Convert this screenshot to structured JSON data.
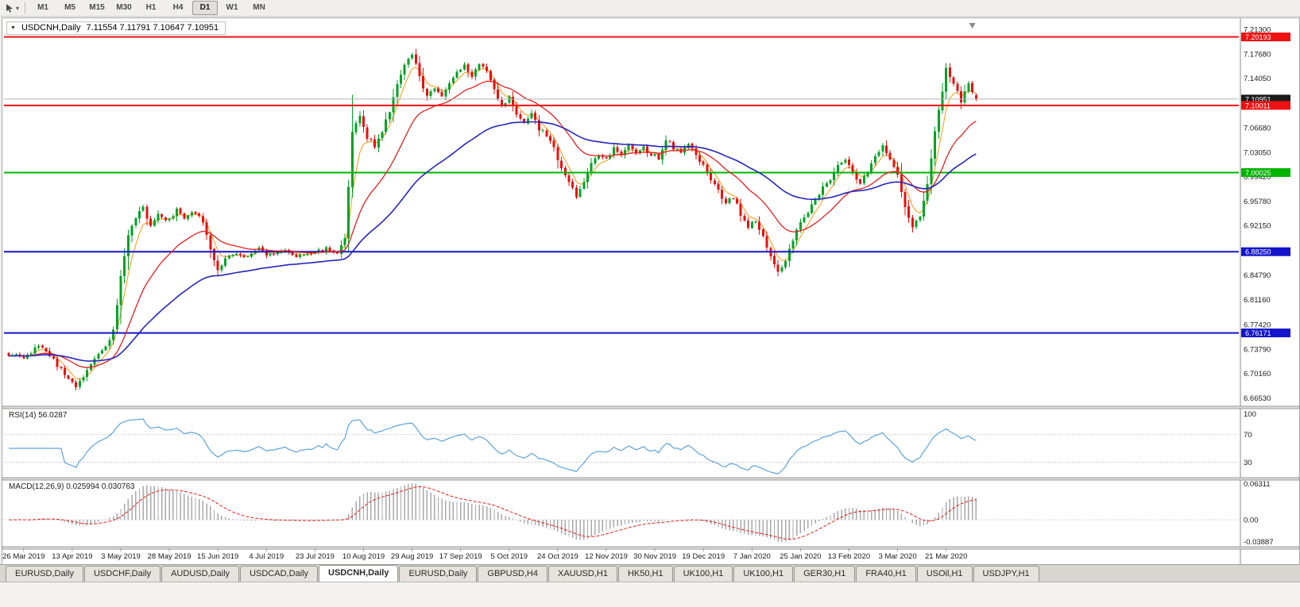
{
  "window": {
    "symbol_period": "USDCNH,Daily",
    "ohlc": "7.11554 7.11791 7.10647 7.10951"
  },
  "toolbar": {
    "timeframes": [
      "M1",
      "M5",
      "M15",
      "M30",
      "H1",
      "H4",
      "D1",
      "W1",
      "MN"
    ],
    "active_timeframe": "D1"
  },
  "chart_data": {
    "type": "candlestick",
    "symbol": "USDCNH",
    "period": "Daily",
    "current_bar": {
      "open": 7.11554,
      "high": 7.11791,
      "low": 7.10647,
      "close": 7.10951
    },
    "colors": {
      "up": "#00a327",
      "down": "#e81010",
      "ma_fast": "#f5a733",
      "ma_mid": "#e02020",
      "ma_slow": "#2626bd",
      "bid_line": "#b3b3b3",
      "bid_box": "#1a1a1a",
      "rsi": "#4f9bd9",
      "macd_hist": "#a8a8a8",
      "macd_signal": "#e02020"
    },
    "y_range": [
      6.655,
      7.225
    ],
    "y_ticks": [
      "7.21300",
      "7.17680",
      "7.14050",
      "7.06680",
      "7.03050",
      "6.99420",
      "6.95780",
      "6.92150",
      "6.84790",
      "6.81160",
      "6.77420",
      "6.73790",
      "6.70160",
      "6.66530"
    ],
    "horizontal_lines": [
      {
        "price": 7.20193,
        "label": "7.20193",
        "color": "#ee1111"
      },
      {
        "price": 7.10011,
        "label": "7.10011",
        "color": "#ee1111"
      },
      {
        "price": 7.00025,
        "label": "7.00025",
        "color": "#00b400"
      },
      {
        "price": 6.8825,
        "label": "6.88250",
        "color": "#1414cc"
      },
      {
        "price": 6.76171,
        "label": "6.76171",
        "color": "#1414cc"
      }
    ],
    "bid": {
      "price": 7.10951,
      "label": "7.10951"
    },
    "x_labels": [
      {
        "text": "26 Mar 2019",
        "i": 4
      },
      {
        "text": "13 Apr 2019",
        "i": 17
      },
      {
        "text": "3 May 2019",
        "i": 30
      },
      {
        "text": "28 May 2019",
        "i": 43
      },
      {
        "text": "15 Jun 2019",
        "i": 56
      },
      {
        "text": "4 Jul 2019",
        "i": 69
      },
      {
        "text": "23 Jul 2019",
        "i": 82
      },
      {
        "text": "10 Aug 2019",
        "i": 95
      },
      {
        "text": "29 Aug 2019",
        "i": 108
      },
      {
        "text": "17 Sep 2019",
        "i": 121
      },
      {
        "text": "5 Oct 2019",
        "i": 134
      },
      {
        "text": "24 Oct 2019",
        "i": 147
      },
      {
        "text": "12 Nov 2019",
        "i": 160
      },
      {
        "text": "30 Nov 2019",
        "i": 173
      },
      {
        "text": "19 Dec 2019",
        "i": 186
      },
      {
        "text": "7 Jan 2020",
        "i": 199
      },
      {
        "text": "25 Jan 2020",
        "i": 212
      },
      {
        "text": "13 Feb 2020",
        "i": 225
      },
      {
        "text": "3 Mar 2020",
        "i": 238
      },
      {
        "text": "21 Mar 2020",
        "i": 251
      }
    ],
    "candles": {
      "count": 260,
      "close_waypoints": [
        [
          0,
          6.73
        ],
        [
          4,
          6.726
        ],
        [
          8,
          6.742
        ],
        [
          12,
          6.722
        ],
        [
          16,
          6.692
        ],
        [
          18,
          6.681
        ],
        [
          22,
          6.716
        ],
        [
          26,
          6.742
        ],
        [
          28,
          6.764
        ],
        [
          30,
          6.845
        ],
        [
          32,
          6.906
        ],
        [
          34,
          6.934
        ],
        [
          36,
          6.947
        ],
        [
          38,
          6.921
        ],
        [
          40,
          6.938
        ],
        [
          43,
          6.929
        ],
        [
          45,
          6.947
        ],
        [
          47,
          6.935
        ],
        [
          50,
          6.941
        ],
        [
          52,
          6.928
        ],
        [
          54,
          6.884
        ],
        [
          56,
          6.856
        ],
        [
          58,
          6.871
        ],
        [
          61,
          6.882
        ],
        [
          64,
          6.874
        ],
        [
          67,
          6.886
        ],
        [
          70,
          6.877
        ],
        [
          74,
          6.884
        ],
        [
          78,
          6.875
        ],
        [
          82,
          6.881
        ],
        [
          85,
          6.887
        ],
        [
          88,
          6.878
        ],
        [
          90,
          6.901
        ],
        [
          91,
          6.976
        ],
        [
          92,
          7.058
        ],
        [
          94,
          7.082
        ],
        [
          96,
          7.052
        ],
        [
          98,
          7.041
        ],
        [
          100,
          7.062
        ],
        [
          102,
          7.092
        ],
        [
          104,
          7.132
        ],
        [
          106,
          7.163
        ],
        [
          108,
          7.178
        ],
        [
          110,
          7.141
        ],
        [
          112,
          7.112
        ],
        [
          114,
          7.128
        ],
        [
          116,
          7.115
        ],
        [
          118,
          7.132
        ],
        [
          120,
          7.148
        ],
        [
          122,
          7.158
        ],
        [
          124,
          7.145
        ],
        [
          126,
          7.162
        ],
        [
          128,
          7.15
        ],
        [
          130,
          7.121
        ],
        [
          132,
          7.096
        ],
        [
          134,
          7.112
        ],
        [
          136,
          7.089
        ],
        [
          138,
          7.071
        ],
        [
          140,
          7.086
        ],
        [
          142,
          7.065
        ],
        [
          144,
          7.057
        ],
        [
          146,
          7.035
        ],
        [
          148,
          7.007
        ],
        [
          150,
          6.987
        ],
        [
          152,
          6.966
        ],
        [
          154,
          6.986
        ],
        [
          156,
          7.012
        ],
        [
          158,
          7.026
        ],
        [
          160,
          7.019
        ],
        [
          162,
          7.036
        ],
        [
          164,
          7.029
        ],
        [
          166,
          7.042
        ],
        [
          168,
          7.029
        ],
        [
          170,
          7.036
        ],
        [
          172,
          7.027
        ],
        [
          174,
          7.023
        ],
        [
          176,
          7.051
        ],
        [
          178,
          7.037
        ],
        [
          180,
          7.029
        ],
        [
          182,
          7.042
        ],
        [
          184,
          7.029
        ],
        [
          186,
          7.009
        ],
        [
          188,
          6.989
        ],
        [
          190,
          6.973
        ],
        [
          192,
          6.953
        ],
        [
          194,
          6.964
        ],
        [
          196,
          6.939
        ],
        [
          198,
          6.919
        ],
        [
          200,
          6.93
        ],
        [
          202,
          6.907
        ],
        [
          204,
          6.873
        ],
        [
          206,
          6.853
        ],
        [
          208,
          6.872
        ],
        [
          210,
          6.899
        ],
        [
          212,
          6.926
        ],
        [
          214,
          6.941
        ],
        [
          216,
          6.961
        ],
        [
          218,
          6.976
        ],
        [
          220,
          6.992
        ],
        [
          222,
          7.012
        ],
        [
          224,
          7.022
        ],
        [
          226,
          6.999
        ],
        [
          228,
          6.985
        ],
        [
          230,
          7.002
        ],
        [
          232,
          7.022
        ],
        [
          234,
          7.042
        ],
        [
          236,
          7.019
        ],
        [
          238,
          6.996
        ],
        [
          240,
          6.949
        ],
        [
          242,
          6.919
        ],
        [
          244,
          6.936
        ],
        [
          246,
          6.986
        ],
        [
          248,
          7.062
        ],
        [
          250,
          7.122
        ],
        [
          251,
          7.158
        ],
        [
          253,
          7.131
        ],
        [
          255,
          7.108
        ],
        [
          257,
          7.131
        ],
        [
          259,
          7.10951
        ]
      ]
    },
    "moving_averages": [
      {
        "period": 5,
        "method": "ema",
        "color_key": "ma_fast",
        "layer": "under",
        "width": 1.2
      },
      {
        "period": 20,
        "method": "ema",
        "color_key": "ma_mid",
        "layer": "over",
        "width": 1.3
      },
      {
        "period": 55,
        "method": "ema",
        "color_key": "ma_slow",
        "layer": "over",
        "width": 1.6
      }
    ],
    "rsi": {
      "label": "RSI(14) 56.0287",
      "period": 14,
      "current": 56.0287,
      "axis_labels": [
        "100",
        "70",
        "30"
      ],
      "level_lines": [
        70,
        30
      ],
      "value_range": [
        10,
        105
      ]
    },
    "macd": {
      "label": "MACD(12,26,9) 0.025994 0.030763",
      "fast": 12,
      "slow": 26,
      "signal": 9,
      "current_main": 0.025994,
      "current_signal": 0.030763,
      "axis_top": "0.06311",
      "axis_zero": "0.00",
      "axis_bottom": "-0.03887"
    }
  },
  "tabs": {
    "active_index": 4,
    "items": [
      "EURUSD,Daily",
      "USDCHF,Daily",
      "AUDUSD,Daily",
      "USDCAD,Daily",
      "USDCNH,Daily",
      "EURUSD,Daily",
      "GBPUSD,H4",
      "XAUUSD,H1",
      "HK50,H1",
      "UK100,H1",
      "UK100,H1",
      "GER30,H1",
      "FRA40,H1",
      "USOil,H1",
      "USDJPY,H1"
    ]
  }
}
